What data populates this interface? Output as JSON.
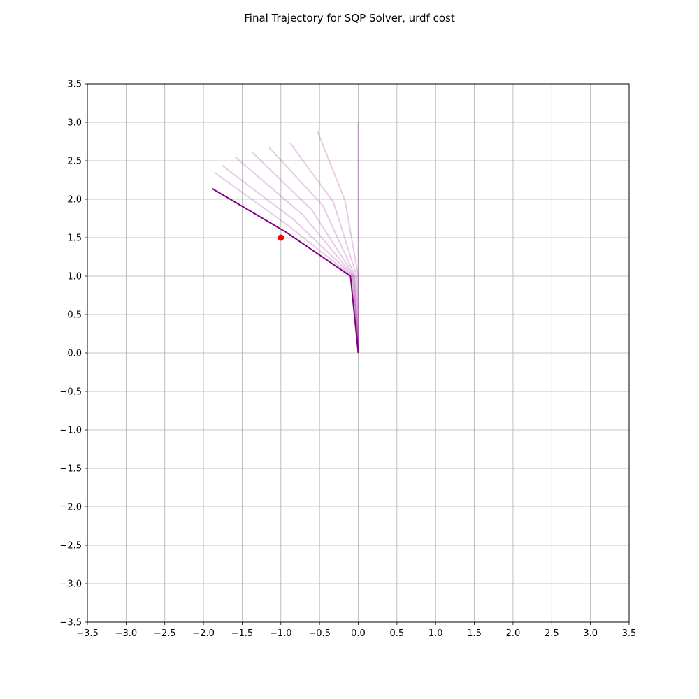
{
  "chart_data": {
    "type": "line",
    "title": "Final Trajectory for SQP Solver, urdf cost",
    "xlabel": "",
    "ylabel": "",
    "xlim": [
      -3.5,
      3.5
    ],
    "ylim": [
      -3.5,
      3.5
    ],
    "grid": true,
    "x_ticks": [
      -3.5,
      -3.0,
      -2.5,
      -2.0,
      -1.5,
      -1.0,
      -0.5,
      0.0,
      0.5,
      1.0,
      1.5,
      2.0,
      2.5,
      3.0,
      3.5
    ],
    "y_ticks": [
      -3.5,
      -3.0,
      -2.5,
      -2.0,
      -1.5,
      -1.0,
      -0.5,
      0.0,
      0.5,
      1.0,
      1.5,
      2.0,
      2.5,
      3.0,
      3.5
    ],
    "x_tick_labels": [
      "−3.5",
      "−3.0",
      "−2.5",
      "−2.0",
      "−1.5",
      "−1.0",
      "−0.5",
      "0.0",
      "0.5",
      "1.0",
      "1.5",
      "2.0",
      "2.5",
      "3.0",
      "3.5"
    ],
    "y_tick_labels": [
      "−3.5",
      "−3.0",
      "−2.5",
      "−2.0",
      "−1.5",
      "−1.0",
      "−0.5",
      "0.0",
      "0.5",
      "1.0",
      "1.5",
      "2.0",
      "2.5",
      "3.0",
      "3.5"
    ],
    "line_color": "#800080",
    "target_color": "#ff0000",
    "intermediate_alpha": 0.2,
    "intermediate_trajectories": [
      [
        [
          0.0,
          0.0
        ],
        [
          0.0,
          1.0
        ],
        [
          0.0,
          2.0
        ],
        [
          0.0,
          3.0
        ]
      ],
      [
        [
          0.0,
          0.0
        ],
        [
          0.0,
          1.0
        ],
        [
          -0.17,
          1.98
        ],
        [
          -0.53,
          2.89
        ]
      ],
      [
        [
          0.0,
          0.0
        ],
        [
          -0.02,
          1.0
        ],
        [
          -0.32,
          1.96
        ],
        [
          -0.88,
          2.73
        ]
      ],
      [
        [
          0.0,
          0.0
        ],
        [
          -0.04,
          1.0
        ],
        [
          -0.46,
          1.92
        ],
        [
          -1.15,
          2.67
        ]
      ],
      [
        [
          0.0,
          0.0
        ],
        [
          -0.05,
          1.0
        ],
        [
          -0.6,
          1.86
        ],
        [
          -1.38,
          2.62
        ]
      ],
      [
        [
          0.0,
          0.0
        ],
        [
          -0.06,
          1.0
        ],
        [
          -0.72,
          1.8
        ],
        [
          -1.59,
          2.55
        ]
      ],
      [
        [
          0.0,
          0.0
        ],
        [
          -0.07,
          1.0
        ],
        [
          -0.83,
          1.73
        ],
        [
          -1.76,
          2.44
        ]
      ],
      [
        [
          0.0,
          0.0
        ],
        [
          -0.08,
          1.0
        ],
        [
          -0.91,
          1.66
        ],
        [
          -1.86,
          2.35
        ]
      ]
    ],
    "final_trajectory": [
      [
        0.0,
        0.0
      ],
      [
        -0.1,
        1.0
      ],
      [
        -0.93,
        1.57
      ],
      [
        -1.89,
        2.14
      ]
    ],
    "target_point": [
      -1.0,
      1.5
    ]
  }
}
